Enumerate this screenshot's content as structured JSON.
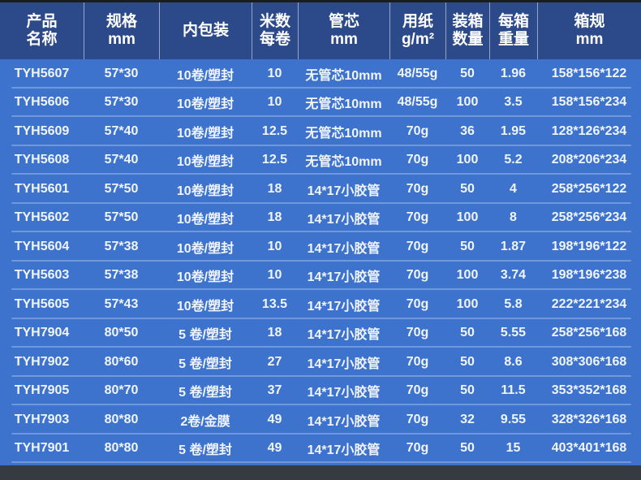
{
  "colors": {
    "top_strip": "#1c1c1c",
    "header_bg": "#2c4a89",
    "row_bg": "#3d72cd",
    "row_divider": "#7099dd",
    "header_divider": "rgba(255,255,255,0.5)",
    "footer_strip": "#353b41",
    "text": "#ffffff"
  },
  "table": {
    "columns": [
      {
        "id": "product-name",
        "lines": [
          "产品",
          "名称"
        ]
      },
      {
        "id": "spec-mm",
        "lines": [
          "规格",
          "mm"
        ]
      },
      {
        "id": "inner-packaging",
        "lines": [
          "内包装"
        ]
      },
      {
        "id": "meters-per-roll",
        "lines": [
          "米数",
          "每卷"
        ]
      },
      {
        "id": "core-mm",
        "lines": [
          "管芯",
          "mm"
        ]
      },
      {
        "id": "paper-weight",
        "lines": [
          "用纸",
          "g/m²"
        ]
      },
      {
        "id": "box-quantity",
        "lines": [
          "装箱",
          "数量"
        ]
      },
      {
        "id": "box-weight",
        "lines": [
          "每箱",
          "重量"
        ]
      },
      {
        "id": "carton-size",
        "lines": [
          "箱规",
          "mm"
        ]
      }
    ],
    "rows": [
      [
        "TYH5607",
        "57*30",
        "10卷/塑封",
        "10",
        "无管芯10mm",
        "48/55g",
        "50",
        "1.96",
        "158*156*122"
      ],
      [
        "TYH5606",
        "57*30",
        "10卷/塑封",
        "10",
        "无管芯10mm",
        "48/55g",
        "100",
        "3.5",
        "158*156*234"
      ],
      [
        "TYH5609",
        "57*40",
        "10卷/塑封",
        "12.5",
        "无管芯10mm",
        "70g",
        "36",
        "1.95",
        "128*126*234"
      ],
      [
        "TYH5608",
        "57*40",
        "10卷/塑封",
        "12.5",
        "无管芯10mm",
        "70g",
        "100",
        "5.2",
        "208*206*234"
      ],
      [
        "TYH5601",
        "57*50",
        "10卷/塑封",
        "18",
        "14*17小胶管",
        "70g",
        "50",
        "4",
        "258*256*122"
      ],
      [
        "TYH5602",
        "57*50",
        "10卷/塑封",
        "18",
        "14*17小胶管",
        "70g",
        "100",
        "8",
        "258*256*234"
      ],
      [
        "TYH5604",
        "57*38",
        "10卷/塑封",
        "10",
        "14*17小胶管",
        "70g",
        "50",
        "1.87",
        "198*196*122"
      ],
      [
        "TYH5603",
        "57*38",
        "10卷/塑封",
        "10",
        "14*17小胶管",
        "70g",
        "100",
        "3.74",
        "198*196*238"
      ],
      [
        "TYH5605",
        "57*43",
        "10卷/塑封",
        "13.5",
        "14*17小胶管",
        "70g",
        "100",
        "5.8",
        "222*221*234"
      ],
      [
        "TYH7904",
        "80*50",
        "5 卷/塑封",
        "18",
        "14*17小胶管",
        "70g",
        "50",
        "5.55",
        "258*256*168"
      ],
      [
        "TYH7902",
        "80*60",
        "5 卷/塑封",
        "27",
        "14*17小胶管",
        "70g",
        "50",
        "8.6",
        "308*306*168"
      ],
      [
        "TYH7905",
        "80*70",
        "5 卷/塑封",
        "37",
        "14*17小胶管",
        "70g",
        "50",
        "11.5",
        "353*352*168"
      ],
      [
        "TYH7903",
        "80*80",
        "2卷/金膜",
        "49",
        "14*17小胶管",
        "70g",
        "32",
        "9.55",
        "328*326*168"
      ],
      [
        "TYH7901",
        "80*80",
        "5 卷/塑封",
        "49",
        "14*17小胶管",
        "70g",
        "50",
        "15",
        "403*401*168"
      ]
    ]
  }
}
